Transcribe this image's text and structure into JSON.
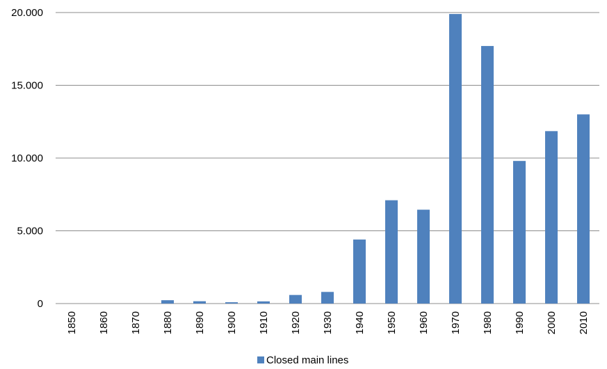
{
  "chart_data": {
    "type": "bar",
    "title": "",
    "xlabel": "",
    "ylabel": "",
    "categories": [
      "1850",
      "1860",
      "1870",
      "1880",
      "1890",
      "1900",
      "1910",
      "1920",
      "1930",
      "1940",
      "1950",
      "1960",
      "1970",
      "1980",
      "1990",
      "2000",
      "2010"
    ],
    "series": [
      {
        "name": "Closed main lines",
        "color": "#4f81bd",
        "values": [
          0,
          0,
          0,
          230,
          160,
          90,
          150,
          590,
          800,
          4400,
          7100,
          6450,
          19900,
          17700,
          9800,
          11850,
          13000
        ]
      }
    ],
    "ylim": [
      0,
      20000
    ],
    "yticks": [
      0,
      5000,
      10000,
      15000,
      20000
    ],
    "ytick_labels": [
      "0",
      "5.000",
      "10.000",
      "15.000",
      "20.000"
    ],
    "grid": "horizontal",
    "legend_position": "bottom"
  }
}
